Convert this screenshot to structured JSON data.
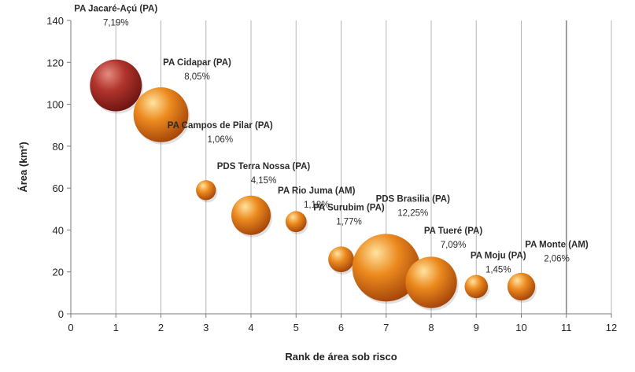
{
  "chart_data": {
    "type": "bubble",
    "title": "",
    "xlabel": "Rank de área sob risco",
    "ylabel": "Área (km²)",
    "xlim": [
      0,
      12
    ],
    "ylim": [
      0,
      140
    ],
    "xticks": [
      0,
      1,
      2,
      3,
      4,
      5,
      6,
      7,
      8,
      9,
      10,
      11,
      12
    ],
    "yticks": [
      0,
      20,
      40,
      60,
      80,
      100,
      120,
      140
    ],
    "grid": "vertical",
    "points": [
      {
        "rank": 1,
        "area": 109,
        "label": "PA Jacaré-Açú (PA)",
        "pct": "7,19%",
        "pct_value": 7.19,
        "color": "#b0342c"
      },
      {
        "rank": 2,
        "area": 95,
        "label": "PA Cidapar (PA)",
        "pct": "8,05%",
        "pct_value": 8.05,
        "color": "#e8861c"
      },
      {
        "rank": 3,
        "area": 59,
        "label": "PA Campos de Pilar (PA)",
        "pct": "1,06%",
        "pct_value": 1.06,
        "color": "#e8861c"
      },
      {
        "rank": 4,
        "area": 47,
        "label": "PDS Terra Nossa (PA)",
        "pct": "4,15%",
        "pct_value": 4.15,
        "color": "#e8861c"
      },
      {
        "rank": 5,
        "area": 44,
        "label": "PA Rio Juma (AM)",
        "pct": "1,18%",
        "pct_value": 1.18,
        "color": "#e8861c"
      },
      {
        "rank": 6,
        "area": 26,
        "label": "PA Surubim (PA)",
        "pct": "1,77%",
        "pct_value": 1.77,
        "color": "#e8861c"
      },
      {
        "rank": 7,
        "area": 22,
        "label": "PDS Brasilia (PA)",
        "pct": "12,25%",
        "pct_value": 12.25,
        "color": "#e8861c"
      },
      {
        "rank": 8,
        "area": 15,
        "label": "PA Tueré (PA)",
        "pct": "7,09%",
        "pct_value": 7.09,
        "color": "#e8861c"
      },
      {
        "rank": 9,
        "area": 13,
        "label": "PA Moju (PA)",
        "pct": "1,45%",
        "pct_value": 1.45,
        "color": "#e8861c"
      },
      {
        "rank": 10,
        "area": 13,
        "label": "PA Monte (AM)",
        "pct": "2,06%",
        "pct_value": 2.06,
        "color": "#e8861c"
      }
    ],
    "reference_line_x": 11
  }
}
